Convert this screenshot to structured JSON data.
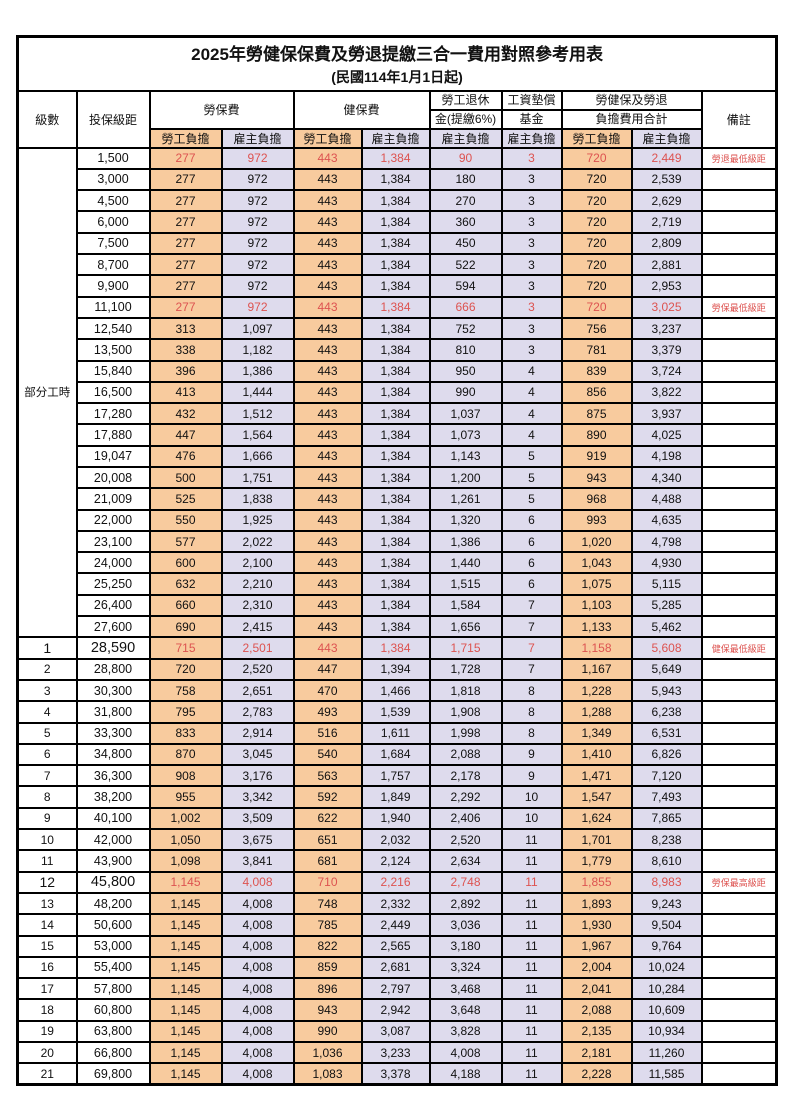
{
  "title": {
    "line1": "2025年勞健保保費及勞退提繳三合一費用對照參考用表",
    "line2": "(民國114年1月1日起)"
  },
  "columns": {
    "level": "級數",
    "bracket": "投保級距",
    "labor_insurance": "勞保費",
    "health_insurance": "健保費",
    "pension_line1": "勞工退休",
    "pension_line2": "金(提繳6%)",
    "wage_fund_line1": "工資墊償",
    "wage_fund_line2": "基金",
    "total_line1": "勞健保及勞退",
    "total_line2": "負擔費用合計",
    "remark": "備註",
    "employee_share": "勞工負擔",
    "employer_share": "雇主負擔"
  },
  "part_time_group_label": "部分工時",
  "colors": {
    "employee_bg": "#F8CB9E",
    "employer_bg": "#DEDBED",
    "highlight_red": "#DD5350",
    "border": "#000000"
  },
  "rows": [
    {
      "level": null,
      "bracket": "1,500",
      "values": [
        "277",
        "972",
        "443",
        "1,384",
        "90",
        "3",
        "720",
        "2,449"
      ],
      "red": true,
      "em": false,
      "remark": "勞退最低級距"
    },
    {
      "level": null,
      "bracket": "3,000",
      "values": [
        "277",
        "972",
        "443",
        "1,384",
        "180",
        "3",
        "720",
        "2,539"
      ],
      "red": false,
      "em": false,
      "remark": ""
    },
    {
      "level": null,
      "bracket": "4,500",
      "values": [
        "277",
        "972",
        "443",
        "1,384",
        "270",
        "3",
        "720",
        "2,629"
      ],
      "red": false,
      "em": false,
      "remark": ""
    },
    {
      "level": null,
      "bracket": "6,000",
      "values": [
        "277",
        "972",
        "443",
        "1,384",
        "360",
        "3",
        "720",
        "2,719"
      ],
      "red": false,
      "em": false,
      "remark": ""
    },
    {
      "level": null,
      "bracket": "7,500",
      "values": [
        "277",
        "972",
        "443",
        "1,384",
        "450",
        "3",
        "720",
        "2,809"
      ],
      "red": false,
      "em": false,
      "remark": ""
    },
    {
      "level": null,
      "bracket": "8,700",
      "values": [
        "277",
        "972",
        "443",
        "1,384",
        "522",
        "3",
        "720",
        "2,881"
      ],
      "red": false,
      "em": false,
      "remark": ""
    },
    {
      "level": null,
      "bracket": "9,900",
      "values": [
        "277",
        "972",
        "443",
        "1,384",
        "594",
        "3",
        "720",
        "2,953"
      ],
      "red": false,
      "em": false,
      "remark": ""
    },
    {
      "level": null,
      "bracket": "11,100",
      "values": [
        "277",
        "972",
        "443",
        "1,384",
        "666",
        "3",
        "720",
        "3,025"
      ],
      "red": true,
      "em": false,
      "remark": "勞保最低級距"
    },
    {
      "level": null,
      "bracket": "12,540",
      "values": [
        "313",
        "1,097",
        "443",
        "1,384",
        "752",
        "3",
        "756",
        "3,237"
      ],
      "red": false,
      "em": false,
      "remark": ""
    },
    {
      "level": null,
      "bracket": "13,500",
      "values": [
        "338",
        "1,182",
        "443",
        "1,384",
        "810",
        "3",
        "781",
        "3,379"
      ],
      "red": false,
      "em": false,
      "remark": ""
    },
    {
      "level": null,
      "bracket": "15,840",
      "values": [
        "396",
        "1,386",
        "443",
        "1,384",
        "950",
        "4",
        "839",
        "3,724"
      ],
      "red": false,
      "em": false,
      "remark": ""
    },
    {
      "level": null,
      "bracket": "16,500",
      "values": [
        "413",
        "1,444",
        "443",
        "1,384",
        "990",
        "4",
        "856",
        "3,822"
      ],
      "red": false,
      "em": false,
      "remark": ""
    },
    {
      "level": null,
      "bracket": "17,280",
      "values": [
        "432",
        "1,512",
        "443",
        "1,384",
        "1,037",
        "4",
        "875",
        "3,937"
      ],
      "red": false,
      "em": false,
      "remark": ""
    },
    {
      "level": null,
      "bracket": "17,880",
      "values": [
        "447",
        "1,564",
        "443",
        "1,384",
        "1,073",
        "4",
        "890",
        "4,025"
      ],
      "red": false,
      "em": false,
      "remark": ""
    },
    {
      "level": null,
      "bracket": "19,047",
      "values": [
        "476",
        "1,666",
        "443",
        "1,384",
        "1,143",
        "5",
        "919",
        "4,198"
      ],
      "red": false,
      "em": false,
      "remark": ""
    },
    {
      "level": null,
      "bracket": "20,008",
      "values": [
        "500",
        "1,751",
        "443",
        "1,384",
        "1,200",
        "5",
        "943",
        "4,340"
      ],
      "red": false,
      "em": false,
      "remark": ""
    },
    {
      "level": null,
      "bracket": "21,009",
      "values": [
        "525",
        "1,838",
        "443",
        "1,384",
        "1,261",
        "5",
        "968",
        "4,488"
      ],
      "red": false,
      "em": false,
      "remark": ""
    },
    {
      "level": null,
      "bracket": "22,000",
      "values": [
        "550",
        "1,925",
        "443",
        "1,384",
        "1,320",
        "6",
        "993",
        "4,635"
      ],
      "red": false,
      "em": false,
      "remark": ""
    },
    {
      "level": null,
      "bracket": "23,100",
      "values": [
        "577",
        "2,022",
        "443",
        "1,384",
        "1,386",
        "6",
        "1,020",
        "4,798"
      ],
      "red": false,
      "em": false,
      "remark": ""
    },
    {
      "level": null,
      "bracket": "24,000",
      "values": [
        "600",
        "2,100",
        "443",
        "1,384",
        "1,440",
        "6",
        "1,043",
        "4,930"
      ],
      "red": false,
      "em": false,
      "remark": ""
    },
    {
      "level": null,
      "bracket": "25,250",
      "values": [
        "632",
        "2,210",
        "443",
        "1,384",
        "1,515",
        "6",
        "1,075",
        "5,115"
      ],
      "red": false,
      "em": false,
      "remark": ""
    },
    {
      "level": null,
      "bracket": "26,400",
      "values": [
        "660",
        "2,310",
        "443",
        "1,384",
        "1,584",
        "7",
        "1,103",
        "5,285"
      ],
      "red": false,
      "em": false,
      "remark": ""
    },
    {
      "level": null,
      "bracket": "27,600",
      "values": [
        "690",
        "2,415",
        "443",
        "1,384",
        "1,656",
        "7",
        "1,133",
        "5,462"
      ],
      "red": false,
      "em": false,
      "remark": ""
    },
    {
      "level": "1",
      "bracket": "28,590",
      "values": [
        "715",
        "2,501",
        "443",
        "1,384",
        "1,715",
        "7",
        "1,158",
        "5,608"
      ],
      "red": true,
      "em": true,
      "remark": "健保最低級距"
    },
    {
      "level": "2",
      "bracket": "28,800",
      "values": [
        "720",
        "2,520",
        "447",
        "1,394",
        "1,728",
        "7",
        "1,167",
        "5,649"
      ],
      "red": false,
      "em": false,
      "remark": ""
    },
    {
      "level": "3",
      "bracket": "30,300",
      "values": [
        "758",
        "2,651",
        "470",
        "1,466",
        "1,818",
        "8",
        "1,228",
        "5,943"
      ],
      "red": false,
      "em": false,
      "remark": ""
    },
    {
      "level": "4",
      "bracket": "31,800",
      "values": [
        "795",
        "2,783",
        "493",
        "1,539",
        "1,908",
        "8",
        "1,288",
        "6,238"
      ],
      "red": false,
      "em": false,
      "remark": ""
    },
    {
      "level": "5",
      "bracket": "33,300",
      "values": [
        "833",
        "2,914",
        "516",
        "1,611",
        "1,998",
        "8",
        "1,349",
        "6,531"
      ],
      "red": false,
      "em": false,
      "remark": ""
    },
    {
      "level": "6",
      "bracket": "34,800",
      "values": [
        "870",
        "3,045",
        "540",
        "1,684",
        "2,088",
        "9",
        "1,410",
        "6,826"
      ],
      "red": false,
      "em": false,
      "remark": ""
    },
    {
      "level": "7",
      "bracket": "36,300",
      "values": [
        "908",
        "3,176",
        "563",
        "1,757",
        "2,178",
        "9",
        "1,471",
        "7,120"
      ],
      "red": false,
      "em": false,
      "remark": ""
    },
    {
      "level": "8",
      "bracket": "38,200",
      "values": [
        "955",
        "3,342",
        "592",
        "1,849",
        "2,292",
        "10",
        "1,547",
        "7,493"
      ],
      "red": false,
      "em": false,
      "remark": ""
    },
    {
      "level": "9",
      "bracket": "40,100",
      "values": [
        "1,002",
        "3,509",
        "622",
        "1,940",
        "2,406",
        "10",
        "1,624",
        "7,865"
      ],
      "red": false,
      "em": false,
      "remark": ""
    },
    {
      "level": "10",
      "bracket": "42,000",
      "values": [
        "1,050",
        "3,675",
        "651",
        "2,032",
        "2,520",
        "11",
        "1,701",
        "8,238"
      ],
      "red": false,
      "em": false,
      "remark": ""
    },
    {
      "level": "11",
      "bracket": "43,900",
      "values": [
        "1,098",
        "3,841",
        "681",
        "2,124",
        "2,634",
        "11",
        "1,779",
        "8,610"
      ],
      "red": false,
      "em": false,
      "remark": ""
    },
    {
      "level": "12",
      "bracket": "45,800",
      "values": [
        "1,145",
        "4,008",
        "710",
        "2,216",
        "2,748",
        "11",
        "1,855",
        "8,983"
      ],
      "red": true,
      "em": true,
      "remark": "勞保最高級距"
    },
    {
      "level": "13",
      "bracket": "48,200",
      "values": [
        "1,145",
        "4,008",
        "748",
        "2,332",
        "2,892",
        "11",
        "1,893",
        "9,243"
      ],
      "red": false,
      "em": false,
      "remark": ""
    },
    {
      "level": "14",
      "bracket": "50,600",
      "values": [
        "1,145",
        "4,008",
        "785",
        "2,449",
        "3,036",
        "11",
        "1,930",
        "9,504"
      ],
      "red": false,
      "em": false,
      "remark": ""
    },
    {
      "level": "15",
      "bracket": "53,000",
      "values": [
        "1,145",
        "4,008",
        "822",
        "2,565",
        "3,180",
        "11",
        "1,967",
        "9,764"
      ],
      "red": false,
      "em": false,
      "remark": ""
    },
    {
      "level": "16",
      "bracket": "55,400",
      "values": [
        "1,145",
        "4,008",
        "859",
        "2,681",
        "3,324",
        "11",
        "2,004",
        "10,024"
      ],
      "red": false,
      "em": false,
      "remark": ""
    },
    {
      "level": "17",
      "bracket": "57,800",
      "values": [
        "1,145",
        "4,008",
        "896",
        "2,797",
        "3,468",
        "11",
        "2,041",
        "10,284"
      ],
      "red": false,
      "em": false,
      "remark": ""
    },
    {
      "level": "18",
      "bracket": "60,800",
      "values": [
        "1,145",
        "4,008",
        "943",
        "2,942",
        "3,648",
        "11",
        "2,088",
        "10,609"
      ],
      "red": false,
      "em": false,
      "remark": ""
    },
    {
      "level": "19",
      "bracket": "63,800",
      "values": [
        "1,145",
        "4,008",
        "990",
        "3,087",
        "3,828",
        "11",
        "2,135",
        "10,934"
      ],
      "red": false,
      "em": false,
      "remark": ""
    },
    {
      "level": "20",
      "bracket": "66,800",
      "values": [
        "1,145",
        "4,008",
        "1,036",
        "3,233",
        "4,008",
        "11",
        "2,181",
        "11,260"
      ],
      "red": false,
      "em": false,
      "remark": ""
    },
    {
      "level": "21",
      "bracket": "69,800",
      "values": [
        "1,145",
        "4,008",
        "1,083",
        "3,378",
        "4,188",
        "11",
        "2,228",
        "11,585"
      ],
      "red": false,
      "em": false,
      "remark": ""
    }
  ]
}
